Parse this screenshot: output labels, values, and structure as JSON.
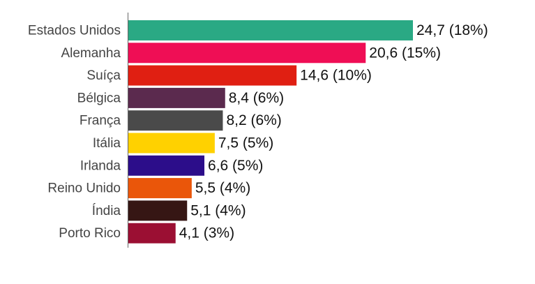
{
  "chart_data": {
    "type": "bar",
    "orientation": "horizontal",
    "categories": [
      "Estados Unidos",
      "Alemanha",
      "Suíça",
      "Bélgica",
      "França",
      "Itália",
      "Irlanda",
      "Reino Unido",
      "Índia",
      "Porto Rico"
    ],
    "values": [
      24.7,
      20.6,
      14.6,
      8.4,
      8.2,
      7.5,
      6.6,
      5.5,
      5.1,
      4.1
    ],
    "value_labels": [
      "24,7 (18%)",
      "20,6 (15%)",
      "14,6 (10%)",
      "8,4 (6%)",
      "8,2 (6%)",
      "7,5 (5%)",
      "6,6 (5%)",
      "5,5 (4%)",
      "5,1 (4%)",
      "4,1 (3%)"
    ],
    "colors": [
      "#2aa984",
      "#ef0e55",
      "#e01f12",
      "#5b2a4e",
      "#4a4a4a",
      "#ffd100",
      "#2c0d8a",
      "#ea560a",
      "#361614",
      "#9b0f33"
    ]
  }
}
